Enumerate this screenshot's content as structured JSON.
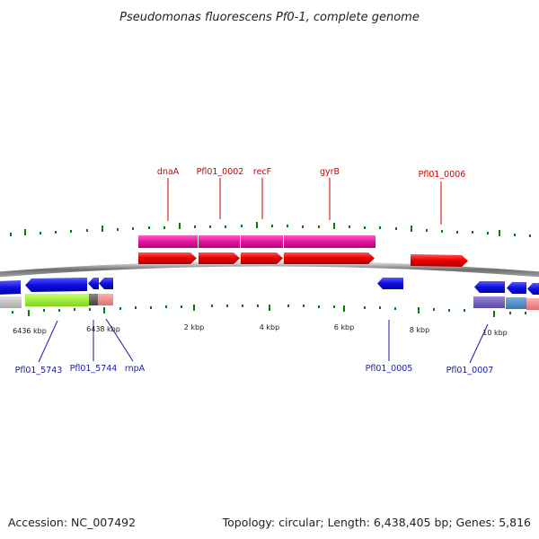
{
  "title": "Pseudomonas fluorescens Pf0-1, complete genome",
  "footer": {
    "accession": "Accession: NC_007492",
    "summary": "Topology: circular; Length: 6,438,405 bp; Genes: 5,816"
  },
  "tick_labels": [
    "6436 kbp",
    "6438 kbp",
    "2 kbp",
    "4 kbp",
    "6 kbp",
    "8 kbp",
    "10 kbp"
  ],
  "top_gene_labels": [
    "dnaA",
    "Pfl01_0002",
    "recF",
    "gyrB",
    "Pfl01_0006"
  ],
  "bottom_gene_labels": [
    "Pfl01_5743",
    "Pfl01_5744",
    "rnpA",
    "Pfl01_0005",
    "Pfl01_0007"
  ],
  "colors": {
    "forward_cds": "#e00000",
    "forward_gene": "#e0149a",
    "reverse_cds": "#1010e0",
    "backbone": "#777777",
    "tick": "#0a7a0a",
    "top_label": "#cc0000",
    "bottom_label": "#1a1aa0"
  }
}
